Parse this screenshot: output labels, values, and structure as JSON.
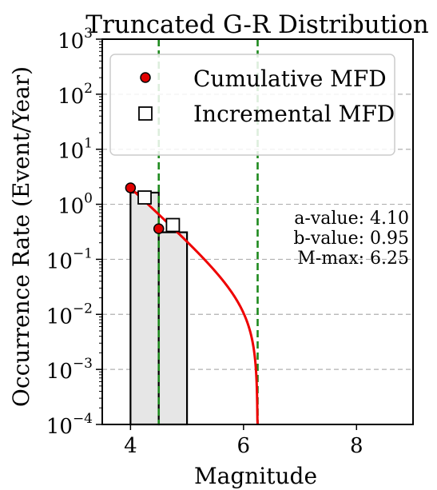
{
  "chart_data": {
    "type": "line",
    "title": "Truncated G-R Distribution",
    "xlabel": "Magnitude",
    "ylabel": "Occurrence Rate (Event/Year)",
    "xlim": [
      3.5,
      9.0
    ],
    "ylim": [
      0.0001,
      1000
    ],
    "yscale": "log",
    "x_ticks": [
      4,
      6,
      8
    ],
    "x_tick_labels": [
      "4",
      "6",
      "8"
    ],
    "y_ticks": [
      0.0001,
      0.001,
      0.01,
      0.1,
      1,
      10,
      100,
      1000
    ],
    "y_tick_labels": [
      {
        "base": "10",
        "exp": "−4"
      },
      {
        "base": "10",
        "exp": "−3"
      },
      {
        "base": "10",
        "exp": "−2"
      },
      {
        "base": "10",
        "exp": "−1"
      },
      {
        "base": "10",
        "exp": "0"
      },
      {
        "base": "10",
        "exp": "1"
      },
      {
        "base": "10",
        "exp": "2"
      },
      {
        "base": "10",
        "exp": "3"
      }
    ],
    "grid": "y-dashed",
    "legend_position": "top",
    "a_value": 4.1,
    "b_value": 0.95,
    "m_min": 4.0,
    "m_max": 6.25,
    "bin_width": 0.5,
    "vertical_lines": [
      4.5,
      6.25
    ],
    "annotations": [
      "a-value: 4.10",
      "b-value: 0.95",
      "M-max: 6.25"
    ],
    "series": [
      {
        "name": "Cumulative MFD",
        "kind": "points",
        "marker": "circle",
        "color": "#e00000",
        "x": [
          4.0,
          4.5
        ],
        "y": [
          1.99,
          0.36
        ]
      },
      {
        "name": "Incremental MFD",
        "kind": "points",
        "marker": "square",
        "color": "#ffffff",
        "x": [
          4.25,
          4.75
        ],
        "y": [
          1.33,
          0.42
        ]
      }
    ],
    "bars": {
      "x_edges": [
        [
          4.0,
          4.5
        ],
        [
          4.5,
          5.0
        ]
      ],
      "values": [
        1.63,
        0.31
      ],
      "fill": "#e6e6e6"
    },
    "curve": {
      "color": "#ee0000",
      "x_start": 4.0,
      "x_end": 6.25
    },
    "guide_color": "#1e8a1e"
  }
}
